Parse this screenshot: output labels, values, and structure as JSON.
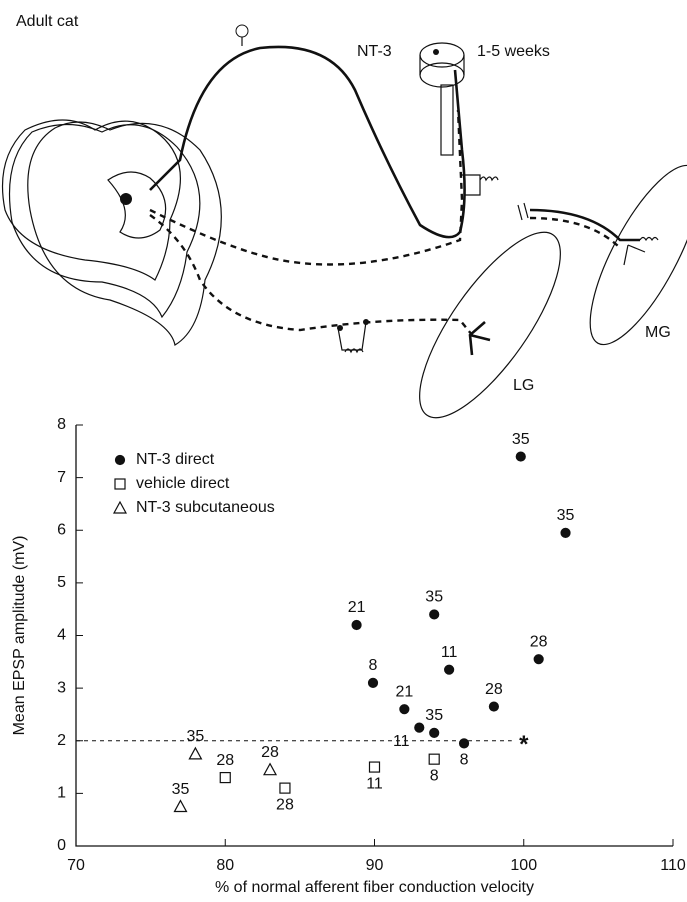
{
  "diagram": {
    "title": "Adult cat",
    "labels": [
      "NT-3",
      "1-5 weeks",
      "MG",
      "LG"
    ]
  },
  "chart_data": {
    "type": "scatter",
    "xlabel": "% of normal afferent fiber conduction velocity",
    "ylabel": "Mean EPSP amplitude (mV)",
    "xlim": [
      70,
      110
    ],
    "xticks": [
      70,
      80,
      90,
      100,
      110
    ],
    "ylim": [
      0,
      8
    ],
    "yticks": [
      0,
      1,
      2,
      3,
      4,
      5,
      6,
      7,
      8
    ],
    "legend": "upper left",
    "reference_line": 2,
    "annotations": [
      {
        "text": "*",
        "x": 100,
        "y": 2
      }
    ],
    "series": [
      {
        "name": "NT-3 direct",
        "marker": "filled-circle",
        "color": "#111111",
        "x": [
          99.8,
          102.8,
          88.8,
          94,
          101,
          95,
          89.9,
          98,
          92,
          93,
          94,
          96
        ],
        "values": [
          7.4,
          5.95,
          4.2,
          4.4,
          3.55,
          3.35,
          3.1,
          2.65,
          2.6,
          2.25,
          2.15,
          1.95
        ],
        "point_labels": [
          35,
          35,
          21,
          35,
          28,
          11,
          8,
          28,
          21,
          11,
          35,
          8
        ]
      },
      {
        "name": "vehicle direct",
        "marker": "open-square",
        "color": "#111111",
        "x": [
          80,
          84,
          90,
          94
        ],
        "values": [
          1.3,
          1.1,
          1.5,
          1.65
        ],
        "point_labels": [
          28,
          28,
          11,
          8
        ]
      },
      {
        "name": "NT-3 subcutaneous",
        "marker": "open-triangle",
        "color": "#111111",
        "x": [
          78,
          77,
          83
        ],
        "values": [
          1.75,
          0.75,
          1.45
        ],
        "point_labels": [
          35,
          35,
          28
        ]
      }
    ]
  }
}
